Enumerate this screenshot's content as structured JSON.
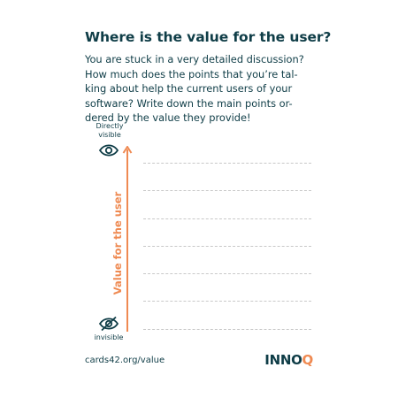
{
  "card": {
    "title": "Where is the value for the user?",
    "body_lines": [
      "You are stuck in a very detailed discussion?",
      "How much does the points that you’re tal-",
      "king about help the current users of your",
      "software? Write down the main points or-",
      "dered by the value they provide!"
    ]
  },
  "axis": {
    "top_label_line1": "Directly",
    "top_label_line2": "visible",
    "top_icon": "eye-icon",
    "bottom_label": "invisible",
    "bottom_icon": "eye-off-icon",
    "label": "Value for the user"
  },
  "write_lines_count": 7,
  "footer": {
    "url": "cards42.org/value",
    "logo_text_part1": "INNO",
    "logo_text_part2": "Q"
  },
  "colors": {
    "primary": "#0f3d47",
    "accent": "#ef8a52",
    "dashes": "#c8c8c8"
  }
}
